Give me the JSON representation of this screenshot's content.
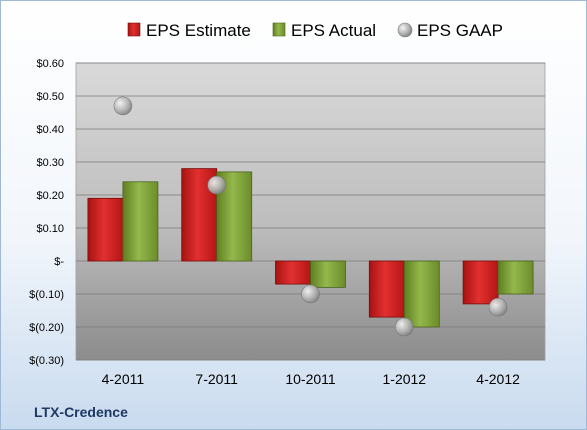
{
  "chart_data": {
    "type": "bar",
    "categories": [
      "4-2011",
      "7-2011",
      "10-2011",
      "1-2012",
      "4-2012"
    ],
    "series": [
      {
        "name": "EPS Estimate",
        "kind": "bar",
        "color": "#d42020",
        "values": [
          0.19,
          0.28,
          -0.07,
          -0.17,
          -0.13
        ]
      },
      {
        "name": "EPS Actual",
        "kind": "bar",
        "color": "#7fa23a",
        "values": [
          0.24,
          0.27,
          -0.08,
          -0.2,
          -0.1
        ]
      },
      {
        "name": "EPS GAAP",
        "kind": "marker",
        "color": "#a8a8a8",
        "values": [
          0.47,
          0.23,
          -0.1,
          -0.2,
          -0.14
        ]
      }
    ],
    "y_ticks": [
      {
        "value": 0.6,
        "label": "$0.60"
      },
      {
        "value": 0.5,
        "label": "$0.50"
      },
      {
        "value": 0.4,
        "label": "$0.40"
      },
      {
        "value": 0.3,
        "label": "$0.30"
      },
      {
        "value": 0.2,
        "label": "$0.20"
      },
      {
        "value": 0.1,
        "label": "$0.10"
      },
      {
        "value": 0.0,
        "label": "$-"
      },
      {
        "value": -0.1,
        "label": "$(0.10)"
      },
      {
        "value": -0.2,
        "label": "$(0.20)"
      },
      {
        "value": -0.3,
        "label": "$(0.30)"
      }
    ],
    "ylim": [
      -0.3,
      0.6
    ],
    "grid": true,
    "legend_position": "top",
    "footer": "LTX-Credence"
  }
}
